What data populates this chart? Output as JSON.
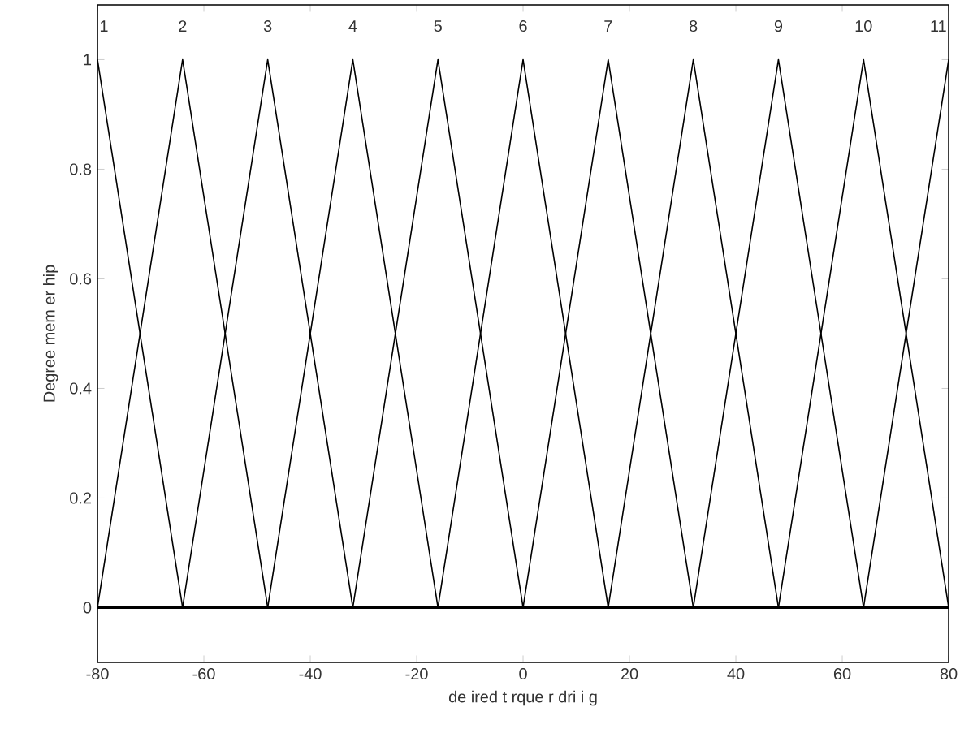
{
  "chart_data": {
    "type": "line",
    "xlabel": "de ired t rque   r dri i g",
    "ylabel": "Degree   mem er hip",
    "series": [
      {
        "color": "#000000",
        "x": [
          -80,
          -64
        ],
        "values": [
          1,
          0
        ]
      },
      {
        "color": "#000000",
        "x": [
          -80,
          -64,
          -48
        ],
        "values": [
          0,
          1,
          0
        ]
      },
      {
        "color": "#000000",
        "x": [
          -64,
          -48,
          -32
        ],
        "values": [
          0,
          1,
          0
        ]
      },
      {
        "color": "#000000",
        "x": [
          -48,
          -32,
          -16
        ],
        "values": [
          0,
          1,
          0
        ]
      },
      {
        "color": "#000000",
        "x": [
          -32,
          -16,
          0
        ],
        "values": [
          0,
          1,
          0
        ]
      },
      {
        "color": "#000000",
        "x": [
          -16,
          0,
          16
        ],
        "values": [
          0,
          1,
          0
        ]
      },
      {
        "color": "#000000",
        "x": [
          0,
          16,
          32
        ],
        "values": [
          0,
          1,
          0
        ]
      },
      {
        "color": "#000000",
        "x": [
          16,
          32,
          48
        ],
        "values": [
          0,
          1,
          0
        ]
      },
      {
        "color": "#000000",
        "x": [
          32,
          48,
          64
        ],
        "values": [
          0,
          1,
          0
        ]
      },
      {
        "color": "#000000",
        "x": [
          48,
          64,
          80
        ],
        "values": [
          0,
          1,
          0
        ]
      },
      {
        "color": "#000000",
        "x": [
          64,
          80
        ],
        "values": [
          0,
          1
        ]
      }
    ],
    "annotations": [
      "1",
      "2",
      "3",
      "4",
      "5",
      "6",
      "7",
      "8",
      "9",
      "10",
      "11"
    ],
    "ref_lines": [
      {
        "axis": "y",
        "value": 0,
        "color": "#000000"
      }
    ],
    "xlim": [
      -80,
      80
    ],
    "ylim": [
      -0.1,
      1.1
    ],
    "xticks": [
      -80,
      -60,
      -40,
      -20,
      0,
      20,
      40,
      60,
      80
    ],
    "yticks": [
      0,
      0.2,
      0.4,
      0.6,
      0.8,
      1
    ],
    "marker": "none",
    "line_style": "solid"
  }
}
